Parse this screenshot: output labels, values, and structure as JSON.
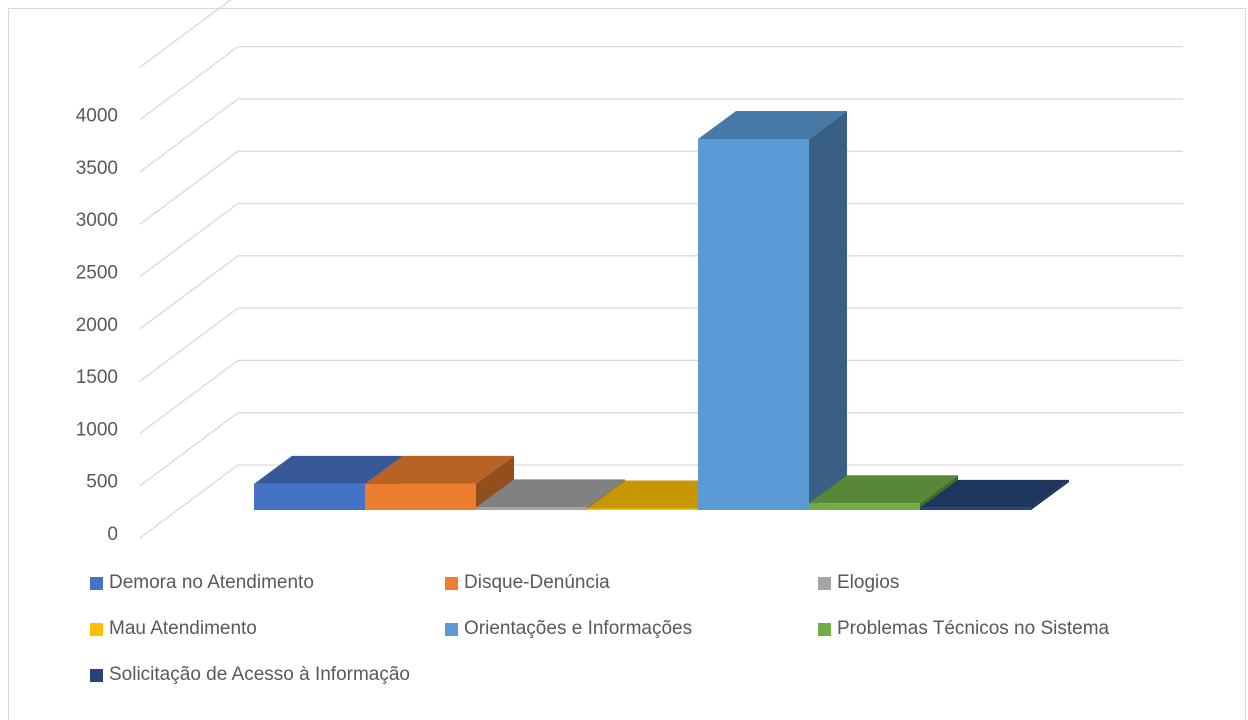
{
  "chart_data": {
    "type": "bar",
    "subtype": "3d-column",
    "categories": [
      "Demora no Atendimento",
      "Disque-Denúncia",
      "Elogios",
      "Mau Atendimento",
      "Orientações e Informações",
      "Problemas Técnicos no Sistema",
      "Solicitação de Acesso à Informação"
    ],
    "values": [
      250,
      250,
      25,
      10,
      3550,
      65,
      20
    ],
    "colors": [
      "#4472c4",
      "#ed7d31",
      "#a5a5a5",
      "#ffc000",
      "#5b9bd5",
      "#70ad47",
      "#264478"
    ],
    "ylim": [
      0,
      4000
    ],
    "yticks": [
      "0",
      "500",
      "1000",
      "1500",
      "2000",
      "2500",
      "3000",
      "3500",
      "4000"
    ],
    "grid": true,
    "legend_position": "bottom"
  }
}
